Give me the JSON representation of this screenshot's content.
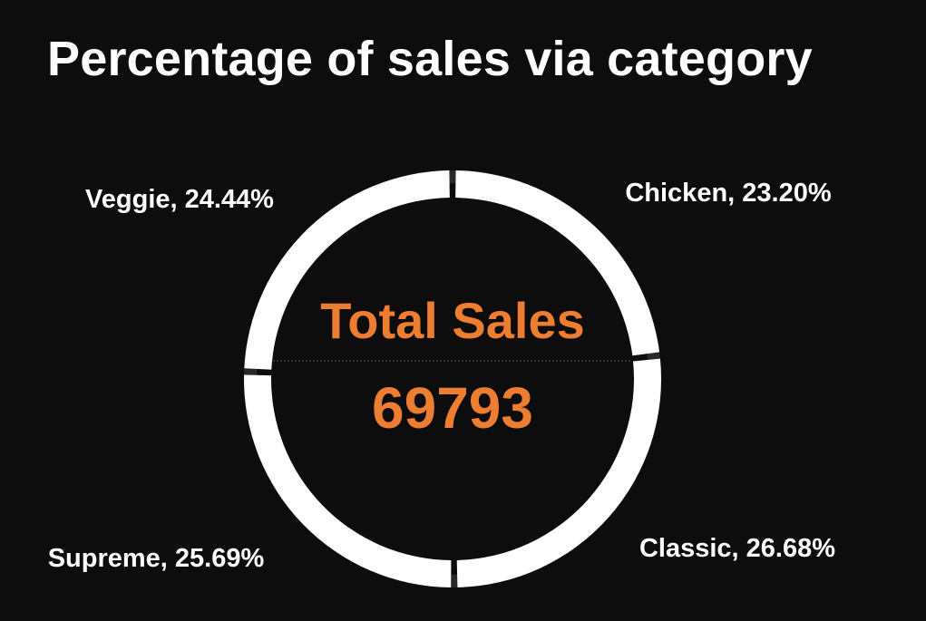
{
  "colors": {
    "background": "#0d0d0d",
    "ring_track": "#2a2a2a",
    "slice": "#ffffff",
    "accent": "#ed7d31"
  },
  "center": {
    "label": "Total Sales",
    "value": "69793"
  },
  "chart_data": {
    "type": "pie",
    "donut": true,
    "title": "Percentage of sales via category",
    "categories": [
      "Chicken",
      "Classic",
      "Supreme",
      "Veggie"
    ],
    "values": [
      23.2,
      26.68,
      25.69,
      24.44
    ],
    "labels": [
      "Chicken, 23.20%",
      "Classic, 26.68%",
      "Supreme, 25.69%",
      "Veggie, 24.44%"
    ],
    "legend": "none"
  }
}
